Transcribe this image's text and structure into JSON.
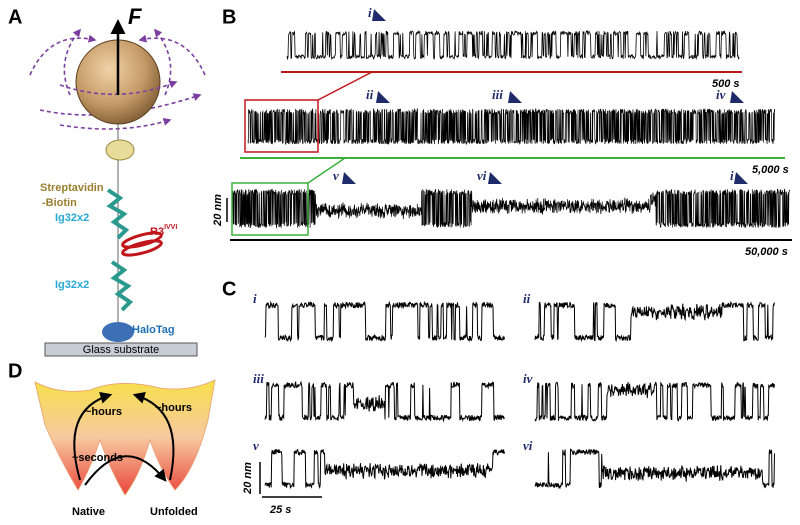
{
  "panel_a": {
    "letter": "A",
    "force": "F",
    "streptavidin": "Streptavidin",
    "biotin": "-Biotin",
    "ig_top": "Ig32x2",
    "r3": "R3",
    "r3_sup": "IVVI",
    "ig_bottom": "Ig32x2",
    "halotag": "HaloTag",
    "substrate": "Glass substrate"
  },
  "panel_b": {
    "letter": "B",
    "marker_top": "i",
    "scale_top": "500 s",
    "marker_ii": "ii",
    "marker_iii": "iii",
    "marker_iv": "iv",
    "scale_mid": "5,000 s",
    "scale_y": "20 nm",
    "marker_v": "v",
    "marker_vi": "vi",
    "marker_i2": "i",
    "scale_bottom": "50,000 s"
  },
  "panel_c": {
    "letter": "C",
    "traces": [
      "i",
      "ii",
      "iii",
      "iv",
      "v",
      "vi"
    ],
    "scale_y": "20 nm",
    "scale_x": "25 s"
  },
  "panel_d": {
    "letter": "D",
    "hours_left": "~hours",
    "hours_right": "~hours",
    "seconds": "~seconds",
    "native": "Native",
    "unfolded": "Unfolded"
  }
}
